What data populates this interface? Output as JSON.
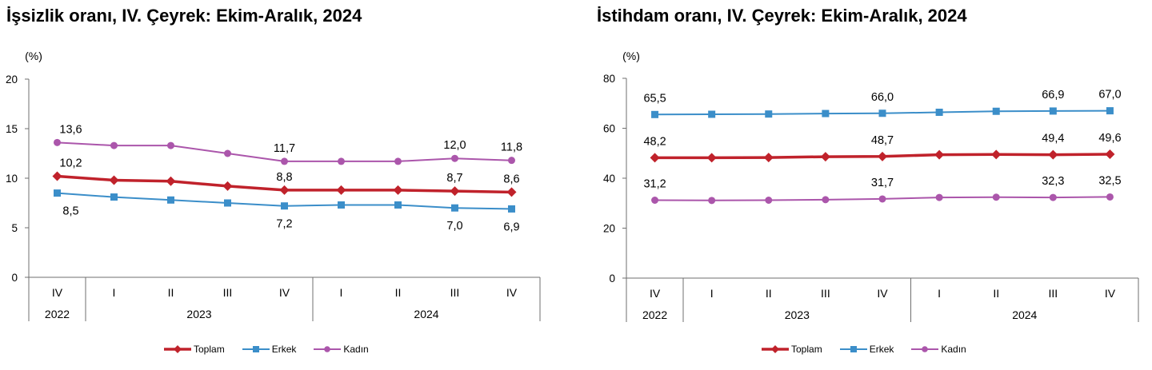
{
  "chart_data": [
    {
      "type": "line",
      "title": "İşsizlik oranı, IV. Çeyrek: Ekim-Aralık, 2024",
      "ylabel": "(%)",
      "ylim": [
        0,
        20
      ],
      "yticks": [
        0,
        5,
        10,
        15,
        20
      ],
      "grid": false,
      "legend_position": "bottom",
      "categories": [
        "IV",
        "I",
        "II",
        "III",
        "IV",
        "I",
        "II",
        "III",
        "IV"
      ],
      "category_groups": [
        {
          "label": "2022",
          "count": 1
        },
        {
          "label": "2023",
          "count": 4
        },
        {
          "label": "2024",
          "count": 4
        }
      ],
      "series": [
        {
          "name": "Toplam",
          "color": "#c0222b",
          "marker": "diamond",
          "label_position": "above",
          "values": [
            10.2,
            9.8,
            9.7,
            9.2,
            8.8,
            8.8,
            8.8,
            8.7,
            8.6
          ],
          "data_labels": [
            "10,2",
            null,
            null,
            null,
            "8,8",
            null,
            null,
            "8,7",
            "8,6"
          ]
        },
        {
          "name": "Erkek",
          "color": "#3b8ec9",
          "marker": "square",
          "label_position": "below",
          "values": [
            8.5,
            8.1,
            7.8,
            7.5,
            7.2,
            7.3,
            7.3,
            7.0,
            6.9
          ],
          "data_labels": [
            "8,5",
            null,
            null,
            null,
            "7,2",
            null,
            null,
            "7,0",
            "6,9"
          ]
        },
        {
          "name": "Kadın",
          "color": "#ab56ab",
          "marker": "circle",
          "label_position": "above",
          "values": [
            13.6,
            13.3,
            13.3,
            12.5,
            11.7,
            11.7,
            11.7,
            12.0,
            11.8
          ],
          "data_labels": [
            "13,6",
            null,
            null,
            null,
            "11,7",
            null,
            null,
            "12,0",
            "11,8"
          ]
        }
      ]
    },
    {
      "type": "line",
      "title": "İstihdam oranı, IV. Çeyrek: Ekim-Aralık, 2024",
      "ylabel": "(%)",
      "ylim": [
        0,
        80
      ],
      "yticks": [
        0,
        20,
        40,
        60,
        80
      ],
      "grid": false,
      "legend_position": "bottom",
      "categories": [
        "IV",
        "I",
        "II",
        "III",
        "IV",
        "I",
        "II",
        "III",
        "IV"
      ],
      "category_groups": [
        {
          "label": "2022",
          "count": 1
        },
        {
          "label": "2023",
          "count": 4
        },
        {
          "label": "2024",
          "count": 4
        }
      ],
      "series": [
        {
          "name": "Toplam",
          "color": "#c0222b",
          "marker": "diamond",
          "label_position": "above",
          "values": [
            48.2,
            48.2,
            48.3,
            48.6,
            48.7,
            49.4,
            49.5,
            49.4,
            49.6
          ],
          "data_labels": [
            "48,2",
            null,
            null,
            null,
            "48,7",
            null,
            null,
            "49,4",
            "49,6"
          ]
        },
        {
          "name": "Erkek",
          "color": "#3b8ec9",
          "marker": "square",
          "label_position": "above",
          "values": [
            65.5,
            65.6,
            65.7,
            65.9,
            66.0,
            66.4,
            66.8,
            66.9,
            67.0
          ],
          "data_labels": [
            "65,5",
            null,
            null,
            null,
            "66,0",
            null,
            null,
            "66,9",
            "67,0"
          ]
        },
        {
          "name": "Kadın",
          "color": "#ab56ab",
          "marker": "circle",
          "label_position": "above",
          "values": [
            31.2,
            31.1,
            31.2,
            31.4,
            31.7,
            32.3,
            32.4,
            32.3,
            32.5
          ],
          "data_labels": [
            "31,2",
            null,
            null,
            null,
            "31,7",
            null,
            null,
            "32,3",
            "32,5"
          ]
        }
      ]
    }
  ]
}
